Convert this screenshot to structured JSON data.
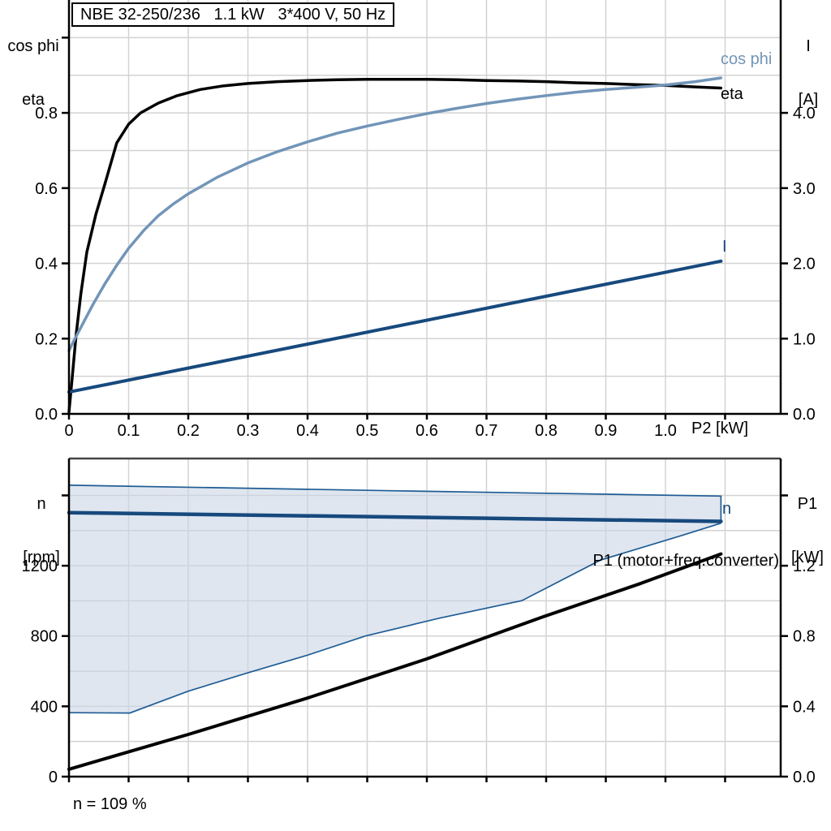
{
  "title_box": {
    "text": "NBE 32-250/236   1.1 kW   3*400 V, 50 Hz"
  },
  "footer": {
    "note": "n = 109 %"
  },
  "colors": {
    "curve_black": "#000000",
    "cos_phi_blue": "#7295b8",
    "dark_blue": "#17497d",
    "envelope_fill": "#c9d6e4",
    "envelope_stroke": "#1e5c94",
    "grid": "#d3d3d3",
    "frame": "#454545"
  },
  "chart_data": [
    {
      "id": "top",
      "type": "line",
      "title": "NBE 32-250/236   1.1 kW   3*400 V, 50 Hz",
      "x_axis": {
        "unit_label": "P2 [kW]",
        "range": [
          0,
          1.1932
        ],
        "tick_values": [
          0,
          0.1,
          0.2,
          0.3,
          0.4,
          0.5,
          0.6,
          0.7,
          0.8,
          0.9,
          1.0,
          1.1
        ],
        "tick_labels": [
          "0",
          "0.1",
          "0.2",
          "0.3",
          "0.4",
          "0.5",
          "0.6",
          "0.7",
          "0.8",
          "0.9",
          "1.0",
          ""
        ],
        "grid": [
          0.1,
          0.2,
          0.3,
          0.4,
          0.5,
          0.6,
          0.7,
          0.8,
          0.9,
          1.0,
          1.1
        ]
      },
      "left_axis": {
        "label_lines": [
          "cos phi",
          "eta"
        ],
        "range": [
          0,
          1.1
        ],
        "tick_values": [
          0,
          0.2,
          0.4,
          0.6,
          0.8,
          1.0
        ],
        "tick_labels": [
          "0.0",
          "0.2",
          "0.4",
          "0.6",
          "0.8",
          ""
        ],
        "grid": [
          0.1,
          0.2,
          0.3,
          0.4,
          0.5,
          0.6,
          0.7,
          0.8,
          0.9,
          1.0
        ]
      },
      "right_axis": {
        "label_lines": [
          "I",
          "[A]"
        ],
        "range": [
          0,
          5.5
        ],
        "tick_values": [
          0,
          1,
          2,
          3,
          4
        ],
        "tick_labels": [
          "0.0",
          "1.0",
          "2.0",
          "3.0",
          "4.0"
        ]
      },
      "series": [
        {
          "name": "eta",
          "label": "eta",
          "axis": "left",
          "color": "#000000",
          "width": 3.5,
          "points": [
            [
              0,
              0.005
            ],
            [
              0.005,
              0.09
            ],
            [
              0.012,
              0.21
            ],
            [
              0.02,
              0.32
            ],
            [
              0.03,
              0.43
            ],
            [
              0.045,
              0.53
            ],
            [
              0.06,
              0.61
            ],
            [
              0.08,
              0.72
            ],
            [
              0.1,
              0.77
            ],
            [
              0.12,
              0.8
            ],
            [
              0.15,
              0.826
            ],
            [
              0.18,
              0.845
            ],
            [
              0.22,
              0.862
            ],
            [
              0.26,
              0.872
            ],
            [
              0.3,
              0.878
            ],
            [
              0.35,
              0.883
            ],
            [
              0.4,
              0.886
            ],
            [
              0.45,
              0.888
            ],
            [
              0.5,
              0.889
            ],
            [
              0.55,
              0.889
            ],
            [
              0.6,
              0.889
            ],
            [
              0.65,
              0.888
            ],
            [
              0.7,
              0.886
            ],
            [
              0.75,
              0.885
            ],
            [
              0.8,
              0.883
            ],
            [
              0.85,
              0.88
            ],
            [
              0.9,
              0.878
            ],
            [
              0.95,
              0.875
            ],
            [
              1.0,
              0.873
            ],
            [
              1.05,
              0.869
            ],
            [
              1.093,
              0.866
            ]
          ]
        },
        {
          "name": "cos-phi",
          "label": "cos phi",
          "axis": "left",
          "color": "#7295b8",
          "width": 3.5,
          "points": [
            [
              0,
              0.168
            ],
            [
              0.01,
              0.2
            ],
            [
              0.02,
              0.23
            ],
            [
              0.03,
              0.26
            ],
            [
              0.04,
              0.29
            ],
            [
              0.06,
              0.345
            ],
            [
              0.08,
              0.395
            ],
            [
              0.1,
              0.44
            ],
            [
              0.125,
              0.487
            ],
            [
              0.15,
              0.527
            ],
            [
              0.175,
              0.558
            ],
            [
              0.2,
              0.585
            ],
            [
              0.25,
              0.63
            ],
            [
              0.3,
              0.667
            ],
            [
              0.35,
              0.697
            ],
            [
              0.4,
              0.723
            ],
            [
              0.45,
              0.746
            ],
            [
              0.5,
              0.765
            ],
            [
              0.55,
              0.782
            ],
            [
              0.6,
              0.798
            ],
            [
              0.65,
              0.812
            ],
            [
              0.7,
              0.825
            ],
            [
              0.75,
              0.836
            ],
            [
              0.8,
              0.846
            ],
            [
              0.85,
              0.855
            ],
            [
              0.9,
              0.862
            ],
            [
              0.95,
              0.868
            ],
            [
              1.0,
              0.874
            ],
            [
              1.05,
              0.883
            ],
            [
              1.093,
              0.893
            ]
          ]
        },
        {
          "name": "current",
          "label": "I",
          "axis": "right",
          "color": "#17497d",
          "width": 4,
          "points": [
            [
              0,
              0.29
            ],
            [
              1.093,
              2.03
            ]
          ]
        }
      ]
    },
    {
      "id": "bottom",
      "type": "line",
      "x_axis": {
        "unit_label": "",
        "range": [
          0,
          1.1932
        ],
        "tick_values": [
          0,
          0.1,
          0.2,
          0.3,
          0.4,
          0.5,
          0.6,
          0.7,
          0.8,
          0.9,
          1.0,
          1.1
        ],
        "tick_labels": [
          "",
          "",
          "",
          "",
          "",
          "",
          "",
          "",
          "",
          "",
          "",
          ""
        ],
        "grid": [
          0.1,
          0.2,
          0.3,
          0.4,
          0.5,
          0.6,
          0.7,
          0.8,
          0.9,
          1.0,
          1.1
        ]
      },
      "left_axis": {
        "label_lines": [
          "n",
          "[rpm]"
        ],
        "range": [
          0,
          1810
        ],
        "tick_values": [
          0,
          400,
          800,
          1200,
          1600
        ],
        "tick_labels": [
          "0",
          "400",
          "800",
          "1200",
          ""
        ],
        "grid": [
          200,
          400,
          600,
          800,
          1000,
          1200,
          1400,
          1600
        ]
      },
      "right_axis": {
        "label_lines": [
          "P1",
          "[kW]"
        ],
        "range": [
          0,
          1.81
        ],
        "tick_values": [
          0,
          0.4,
          0.8,
          1.2,
          1.6
        ],
        "tick_labels": [
          "0.0",
          "0.4",
          "0.8",
          "1.2",
          ""
        ]
      },
      "series": [
        {
          "name": "speed-envelope",
          "type": "area",
          "axis": "left",
          "fill": "#c9d6e4",
          "fill_opacity": 0.6,
          "stroke": "#1e5c94",
          "stroke_width": 1.7,
          "upper": [
            [
              0,
              1658
            ],
            [
              0.55,
              1626
            ],
            [
              1.093,
              1596
            ]
          ],
          "right_drop_to": 1452,
          "lower": [
            [
              0,
              364
            ],
            [
              0.102,
              362
            ],
            [
              0.15,
              423
            ],
            [
              0.2,
              486
            ],
            [
              0.297,
              588
            ],
            [
              0.397,
              688
            ],
            [
              0.497,
              800
            ],
            [
              0.619,
              900
            ],
            [
              0.759,
              1001
            ],
            [
              0.891,
              1232
            ],
            [
              1.027,
              1372
            ],
            [
              1.093,
              1442
            ]
          ]
        },
        {
          "name": "n",
          "label": "n",
          "axis": "left",
          "color": "#17497d",
          "width": 4.5,
          "points": [
            [
              0,
              1502
            ],
            [
              1.093,
              1452
            ]
          ]
        },
        {
          "name": "p1-motor-freq-converter",
          "label": "P1 (motor+freq.converter)",
          "axis": "right",
          "color": "#000000",
          "width": 4,
          "points": [
            [
              0,
              0.042
            ],
            [
              0.2,
              0.24
            ],
            [
              0.397,
              0.444
            ],
            [
              0.6,
              0.67
            ],
            [
              0.796,
              0.911
            ],
            [
              0.959,
              1.1
            ],
            [
              1.093,
              1.267
            ]
          ]
        }
      ]
    }
  ]
}
